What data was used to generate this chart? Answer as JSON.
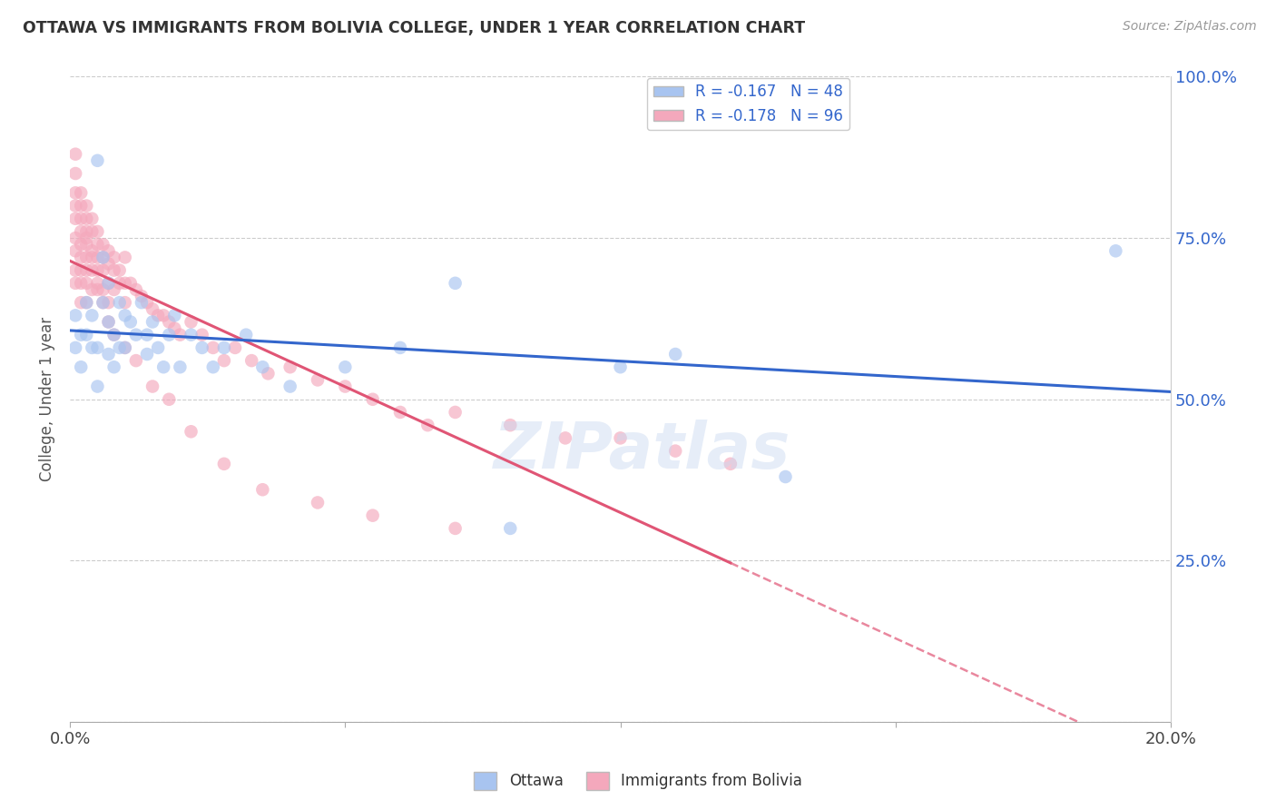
{
  "title": "OTTAWA VS IMMIGRANTS FROM BOLIVIA COLLEGE, UNDER 1 YEAR CORRELATION CHART",
  "source": "Source: ZipAtlas.com",
  "ylabel": "College, Under 1 year",
  "legend_label1": "Ottawa",
  "legend_label2": "Immigrants from Bolivia",
  "r1": -0.167,
  "n1": 48,
  "r2": -0.178,
  "n2": 96,
  "color1": "#a8c4f0",
  "color2": "#f4a8bc",
  "line_color1": "#3366cc",
  "line_color2": "#e05575",
  "x_min": 0.0,
  "x_max": 0.2,
  "y_min": 0.0,
  "y_max": 1.0,
  "x_ticks": [
    0.0,
    0.05,
    0.1,
    0.15,
    0.2
  ],
  "x_tick_labels": [
    "0.0%",
    "",
    "",
    "",
    "20.0%"
  ],
  "y_ticks": [
    0.0,
    0.25,
    0.5,
    0.75,
    1.0
  ],
  "y_tick_labels": [
    "",
    "25.0%",
    "50.0%",
    "75.0%",
    "100.0%"
  ],
  "watermark": "ZIPatlas",
  "ottawa_x": [
    0.001,
    0.001,
    0.002,
    0.002,
    0.003,
    0.003,
    0.004,
    0.004,
    0.005,
    0.005,
    0.005,
    0.006,
    0.006,
    0.007,
    0.007,
    0.007,
    0.008,
    0.008,
    0.009,
    0.009,
    0.01,
    0.01,
    0.011,
    0.012,
    0.013,
    0.014,
    0.014,
    0.015,
    0.016,
    0.017,
    0.018,
    0.019,
    0.02,
    0.022,
    0.024,
    0.026,
    0.028,
    0.032,
    0.035,
    0.04,
    0.05,
    0.06,
    0.07,
    0.08,
    0.1,
    0.11,
    0.13,
    0.19
  ],
  "ottawa_y": [
    0.63,
    0.58,
    0.6,
    0.55,
    0.65,
    0.6,
    0.58,
    0.63,
    0.52,
    0.58,
    0.87,
    0.65,
    0.72,
    0.68,
    0.62,
    0.57,
    0.6,
    0.55,
    0.65,
    0.58,
    0.63,
    0.58,
    0.62,
    0.6,
    0.65,
    0.6,
    0.57,
    0.62,
    0.58,
    0.55,
    0.6,
    0.63,
    0.55,
    0.6,
    0.58,
    0.55,
    0.58,
    0.6,
    0.55,
    0.52,
    0.55,
    0.58,
    0.68,
    0.3,
    0.55,
    0.57,
    0.38,
    0.73
  ],
  "bolivia_x": [
    0.001,
    0.001,
    0.001,
    0.001,
    0.001,
    0.001,
    0.001,
    0.001,
    0.001,
    0.002,
    0.002,
    0.002,
    0.002,
    0.002,
    0.002,
    0.002,
    0.002,
    0.002,
    0.003,
    0.003,
    0.003,
    0.003,
    0.003,
    0.003,
    0.003,
    0.003,
    0.004,
    0.004,
    0.004,
    0.004,
    0.004,
    0.005,
    0.005,
    0.005,
    0.005,
    0.005,
    0.006,
    0.006,
    0.006,
    0.006,
    0.007,
    0.007,
    0.007,
    0.007,
    0.008,
    0.008,
    0.008,
    0.009,
    0.009,
    0.01,
    0.01,
    0.01,
    0.011,
    0.012,
    0.013,
    0.014,
    0.015,
    0.016,
    0.017,
    0.018,
    0.019,
    0.02,
    0.022,
    0.024,
    0.026,
    0.028,
    0.03,
    0.033,
    0.036,
    0.04,
    0.045,
    0.05,
    0.055,
    0.06,
    0.065,
    0.07,
    0.08,
    0.09,
    0.1,
    0.11,
    0.12,
    0.003,
    0.004,
    0.005,
    0.006,
    0.007,
    0.008,
    0.01,
    0.012,
    0.015,
    0.018,
    0.022,
    0.028,
    0.035,
    0.045,
    0.055,
    0.07
  ],
  "bolivia_y": [
    0.88,
    0.85,
    0.82,
    0.8,
    0.78,
    0.75,
    0.73,
    0.7,
    0.68,
    0.82,
    0.8,
    0.78,
    0.76,
    0.74,
    0.72,
    0.7,
    0.68,
    0.65,
    0.8,
    0.78,
    0.76,
    0.74,
    0.72,
    0.7,
    0.68,
    0.65,
    0.78,
    0.76,
    0.73,
    0.7,
    0.67,
    0.76,
    0.74,
    0.72,
    0.7,
    0.67,
    0.74,
    0.72,
    0.7,
    0.67,
    0.73,
    0.71,
    0.68,
    0.65,
    0.72,
    0.7,
    0.67,
    0.7,
    0.68,
    0.72,
    0.68,
    0.65,
    0.68,
    0.67,
    0.66,
    0.65,
    0.64,
    0.63,
    0.63,
    0.62,
    0.61,
    0.6,
    0.62,
    0.6,
    0.58,
    0.56,
    0.58,
    0.56,
    0.54,
    0.55,
    0.53,
    0.52,
    0.5,
    0.48,
    0.46,
    0.48,
    0.46,
    0.44,
    0.44,
    0.42,
    0.4,
    0.75,
    0.72,
    0.68,
    0.65,
    0.62,
    0.6,
    0.58,
    0.56,
    0.52,
    0.5,
    0.45,
    0.4,
    0.36,
    0.34,
    0.32,
    0.3
  ]
}
